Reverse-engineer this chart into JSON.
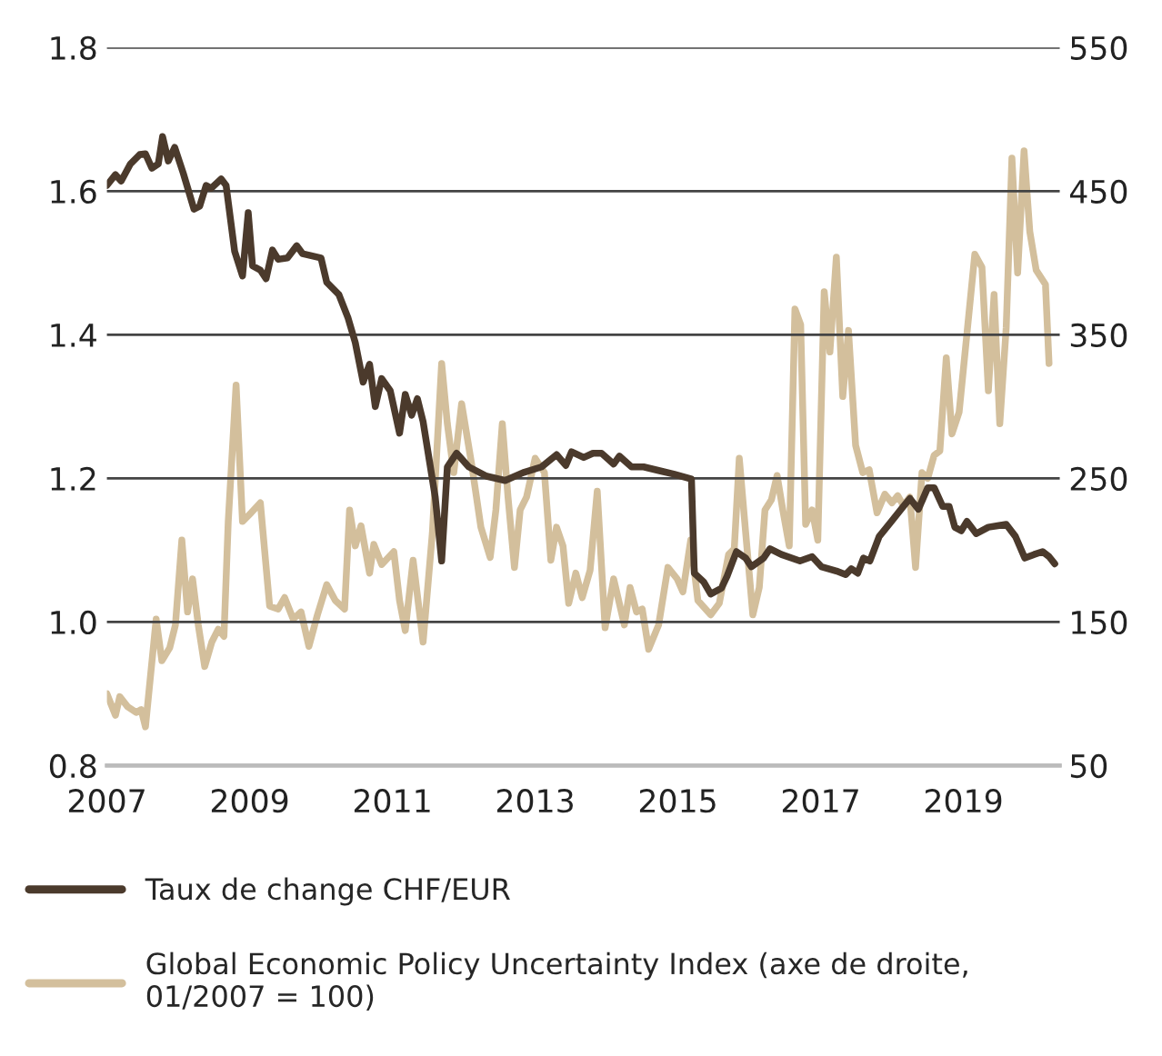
{
  "chart_data": {
    "type": "line",
    "xlim": [
      2007,
      2020.35
    ],
    "xticks": [
      2007,
      2009,
      2011,
      2013,
      2015,
      2017,
      2019
    ],
    "ylim": [
      0.8,
      1.8
    ],
    "yticks": [
      {
        "value": 0.8,
        "label": "0.8"
      },
      {
        "value": 1.0,
        "label": "1.0"
      },
      {
        "value": 1.2,
        "label": "1.2"
      },
      {
        "value": 1.4,
        "label": "1.4"
      },
      {
        "value": 1.6,
        "label": "1.6"
      },
      {
        "value": 1.8,
        "label": "1.8"
      }
    ],
    "y2lim": [
      50,
      550
    ],
    "y2ticks": [
      50,
      150,
      250,
      350,
      450,
      550
    ],
    "grid": "y",
    "legend": "bottom",
    "line_style": "solid",
    "marker": "none",
    "series": [
      {
        "name": "Taux de change CHF/EUR",
        "color": "#4b3a2c",
        "x": [
          2007.0,
          2007.12,
          2007.2,
          2007.33,
          2007.46,
          2007.54,
          2007.63,
          2007.72,
          2007.78,
          2007.86,
          2007.95,
          2008.07,
          2008.22,
          2008.3,
          2008.39,
          2008.46,
          2008.6,
          2008.67,
          2008.79,
          2008.9,
          2008.98,
          2009.04,
          2009.15,
          2009.23,
          2009.32,
          2009.4,
          2009.53,
          2009.66,
          2009.74,
          2010.0,
          2010.08,
          2010.25,
          2010.38,
          2010.48,
          2010.59,
          2010.68,
          2010.76,
          2010.85,
          2010.97,
          2011.1,
          2011.18,
          2011.27,
          2011.35,
          2011.43,
          2011.6,
          2011.69,
          2011.77,
          2011.9,
          2012.07,
          2012.32,
          2012.58,
          2012.83,
          2013.09,
          2013.3,
          2013.43,
          2013.51,
          2013.68,
          2013.81,
          2013.93,
          2014.1,
          2014.18,
          2014.35,
          2014.52,
          2014.77,
          2014.94,
          2015.19,
          2015.23,
          2015.36,
          2015.46,
          2015.61,
          2015.69,
          2015.82,
          2015.95,
          2016.03,
          2016.2,
          2016.29,
          2016.45,
          2016.71,
          2016.88,
          2017.01,
          2017.22,
          2017.35,
          2017.43,
          2017.52,
          2017.6,
          2017.69,
          2017.82,
          2017.99,
          2018.16,
          2018.25,
          2018.37,
          2018.5,
          2018.59,
          2018.71,
          2018.8,
          2018.88,
          2018.97,
          2019.05,
          2019.18,
          2019.35,
          2019.48,
          2019.6,
          2019.73,
          2019.86,
          2019.99,
          2020.11,
          2020.2,
          2020.28
        ],
        "values": [
          1.608,
          1.623,
          1.614,
          1.638,
          1.651,
          1.652,
          1.632,
          1.638,
          1.676,
          1.642,
          1.661,
          1.625,
          1.575,
          1.579,
          1.608,
          1.604,
          1.617,
          1.608,
          1.516,
          1.482,
          1.57,
          1.496,
          1.49,
          1.478,
          1.518,
          1.505,
          1.507,
          1.524,
          1.513,
          1.507,
          1.473,
          1.456,
          1.423,
          1.389,
          1.334,
          1.359,
          1.3,
          1.339,
          1.322,
          1.263,
          1.317,
          1.288,
          1.311,
          1.279,
          1.174,
          1.085,
          1.216,
          1.235,
          1.216,
          1.203,
          1.197,
          1.208,
          1.216,
          1.233,
          1.218,
          1.237,
          1.229,
          1.235,
          1.235,
          1.22,
          1.231,
          1.216,
          1.216,
          1.21,
          1.206,
          1.199,
          1.068,
          1.056,
          1.039,
          1.047,
          1.064,
          1.098,
          1.089,
          1.077,
          1.089,
          1.102,
          1.094,
          1.085,
          1.091,
          1.077,
          1.071,
          1.066,
          1.074,
          1.068,
          1.089,
          1.085,
          1.119,
          1.14,
          1.161,
          1.172,
          1.157,
          1.187,
          1.187,
          1.161,
          1.161,
          1.132,
          1.127,
          1.14,
          1.123,
          1.132,
          1.134,
          1.136,
          1.119,
          1.089,
          1.094,
          1.098,
          1.091,
          1.081
        ]
      },
      {
        "name": "Global Economic Policy Uncertainty Index (axe de droite,\n01/2007 = 100)",
        "color": "#d3bf9c",
        "axis": "y2",
        "x": [
          2007.0,
          2007.12,
          2007.18,
          2007.29,
          2007.41,
          2007.48,
          2007.54,
          2007.69,
          2007.77,
          2007.88,
          2007.96,
          2008.05,
          2008.13,
          2008.2,
          2008.28,
          2008.37,
          2008.47,
          2008.56,
          2008.64,
          2008.7,
          2008.81,
          2008.9,
          2009.02,
          2009.15,
          2009.28,
          2009.4,
          2009.49,
          2009.61,
          2009.72,
          2009.83,
          2009.95,
          2010.08,
          2010.2,
          2010.33,
          2010.4,
          2010.48,
          2010.56,
          2010.68,
          2010.74,
          2010.85,
          2011.02,
          2011.1,
          2011.18,
          2011.29,
          2011.43,
          2011.56,
          2011.69,
          2011.77,
          2011.86,
          2011.97,
          2012.11,
          2012.24,
          2012.37,
          2012.45,
          2012.54,
          2012.62,
          2012.71,
          2012.79,
          2012.88,
          2013.0,
          2013.13,
          2013.22,
          2013.3,
          2013.39,
          2013.47,
          2013.57,
          2013.66,
          2013.77,
          2013.87,
          2013.98,
          2014.1,
          2014.25,
          2014.33,
          2014.42,
          2014.5,
          2014.59,
          2014.73,
          2014.86,
          2014.99,
          2015.07,
          2015.18,
          2015.28,
          2015.46,
          2015.58,
          2015.71,
          2015.79,
          2015.86,
          2015.95,
          2016.05,
          2016.14,
          2016.22,
          2016.31,
          2016.39,
          2016.47,
          2016.56,
          2016.64,
          2016.72,
          2016.79,
          2016.88,
          2016.96,
          2017.05,
          2017.13,
          2017.22,
          2017.31,
          2017.39,
          2017.49,
          2017.59,
          2017.68,
          2017.79,
          2017.9,
          2018.0,
          2018.08,
          2018.16,
          2018.25,
          2018.33,
          2018.42,
          2018.5,
          2018.59,
          2018.67,
          2018.76,
          2018.84,
          2018.94,
          2019.05,
          2019.16,
          2019.26,
          2019.35,
          2019.43,
          2019.51,
          2019.6,
          2019.68,
          2019.76,
          2019.85,
          2019.93,
          2020.02,
          2020.15,
          2020.2
        ],
        "values": [
          100,
          85,
          98,
          91,
          87,
          89,
          77,
          152,
          123,
          132,
          148,
          207,
          157,
          180,
          148,
          119,
          136,
          145,
          140,
          220,
          315,
          220,
          226,
          233,
          161,
          159,
          167,
          152,
          157,
          133,
          155,
          176,
          165,
          159,
          228,
          203,
          217,
          184,
          204,
          190,
          199,
          165,
          144,
          193,
          136,
          212,
          330,
          288,
          254,
          302,
          260,
          216,
          195,
          228,
          288,
          237,
          188,
          228,
          237,
          264,
          254,
          193,
          216,
          203,
          163,
          184,
          167,
          186,
          241,
          146,
          180,
          148,
          174,
          157,
          159,
          131,
          148,
          188,
          180,
          171,
          207,
          165,
          155,
          163,
          197,
          201,
          264,
          212,
          155,
          174,
          228,
          235,
          252,
          228,
          203,
          368,
          357,
          218,
          228,
          207,
          380,
          338,
          404,
          307,
          353,
          273,
          254,
          256,
          226,
          239,
          233,
          238,
          231,
          237,
          188,
          254,
          250,
          266,
          269,
          334,
          281,
          296,
          351,
          406,
          397,
          311,
          378,
          288,
          355,
          473,
          393,
          478,
          422,
          395,
          385,
          330
        ]
      }
    ]
  }
}
